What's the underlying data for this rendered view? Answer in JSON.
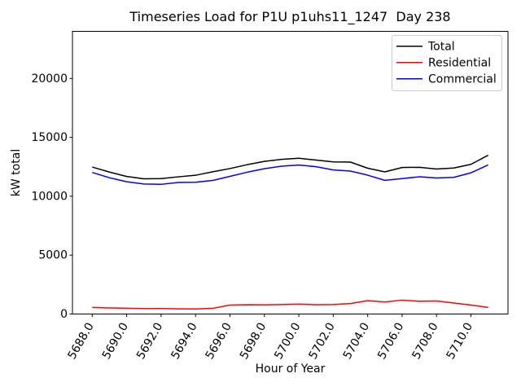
{
  "figure": {
    "background": "#ffffff",
    "spine_color": "#000000"
  },
  "chart_data": {
    "type": "line",
    "title": "Timeseries Load for P1U p1uhs11_1247  Day 238",
    "xlabel": "Hour of Year",
    "ylabel": "kW total",
    "grid": false,
    "legend_position": "upper right",
    "legend_labels": [
      "Total",
      "Residential",
      "Commercial"
    ],
    "xlim": [
      5686.85,
      5712.15
    ],
    "ylim": [
      0,
      24000
    ],
    "x_ticks": [
      5688,
      5690,
      5692,
      5694,
      5696,
      5698,
      5700,
      5702,
      5704,
      5706,
      5708,
      5710
    ],
    "x_tick_labels": [
      "5688.0",
      "5690.0",
      "5692.0",
      "5694.0",
      "5696.0",
      "5698.0",
      "5700.0",
      "5702.0",
      "5704.0",
      "5706.0",
      "5708.0",
      "5710.0"
    ],
    "x_tick_rotation_deg": 60,
    "y_ticks": [
      0,
      5000,
      10000,
      15000,
      20000
    ],
    "y_tick_labels": [
      "0",
      "5000",
      "10000",
      "15000",
      "20000"
    ],
    "x": [
      5688,
      5689,
      5690,
      5691,
      5692,
      5693,
      5694,
      5695,
      5696,
      5697,
      5698,
      5699,
      5700,
      5701,
      5702,
      5703,
      5704,
      5705,
      5706,
      5707,
      5708,
      5709,
      5710,
      5711
    ],
    "series": [
      {
        "name": "Total",
        "color": "#000000",
        "values": [
          12480,
          12050,
          11680,
          11480,
          11500,
          11650,
          11780,
          12080,
          12350,
          12680,
          12960,
          13130,
          13230,
          13070,
          12920,
          12900,
          12380,
          12070,
          12440,
          12460,
          12310,
          12400,
          12710,
          13480
        ]
      },
      {
        "name": "Residential",
        "color": "#ff0000",
        "values": [
          560,
          515,
          495,
          460,
          465,
          440,
          430,
          480,
          760,
          790,
          780,
          800,
          840,
          790,
          800,
          890,
          1130,
          1020,
          1180,
          1080,
          1110,
          930,
          760,
          560
        ]
      },
      {
        "name": "Commercial",
        "color": "#0000ff",
        "values": [
          12020,
          11570,
          11230,
          11040,
          11010,
          11170,
          11190,
          11340,
          11690,
          12040,
          12340,
          12550,
          12650,
          12510,
          12230,
          12140,
          11790,
          11350,
          11500,
          11650,
          11550,
          11600,
          11990,
          12660
        ]
      }
    ]
  }
}
